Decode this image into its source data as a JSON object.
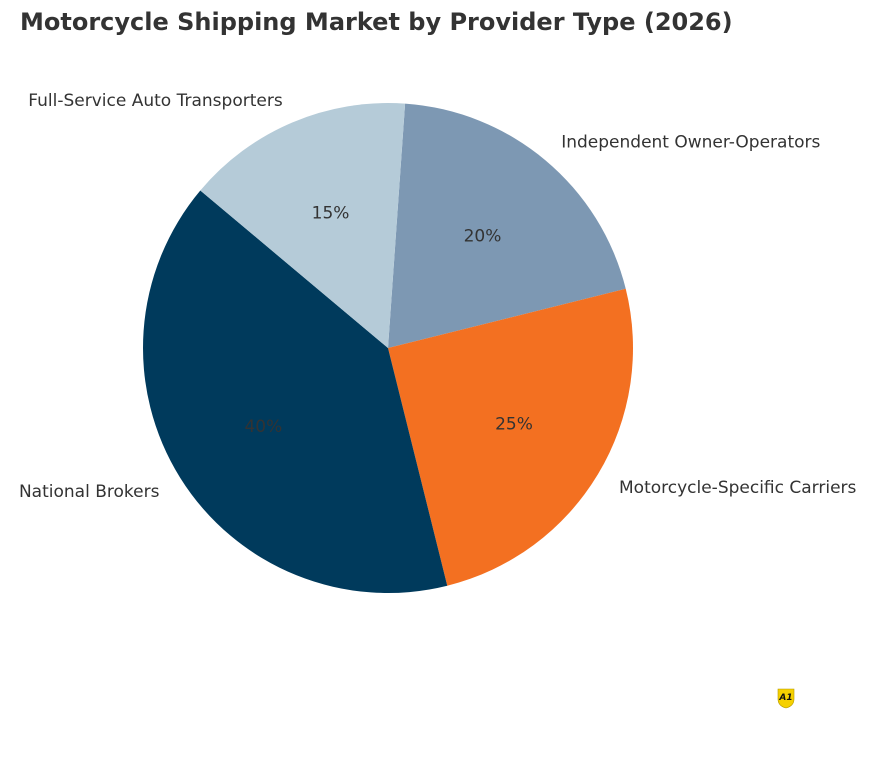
{
  "chart_data": {
    "type": "pie",
    "title": "Motorcycle Shipping Market by Provider Type (2026)",
    "categories": [
      "Independent Owner-Operators",
      "Motorcycle-Specific Carriers",
      "National Brokers",
      "Full-Service Auto Transporters"
    ],
    "values": [
      20,
      25,
      40,
      15
    ],
    "labels_pct": [
      "20%",
      "25%",
      "40%",
      "15%"
    ],
    "colors": [
      "#7d98b3",
      "#f37021",
      "#003a5c",
      "#b5cbd8"
    ],
    "start_angle_deg": 86,
    "direction": "clockwise",
    "legend": "none (direct labels)"
  },
  "watermark": {
    "text": "A1",
    "color": "#f5d000"
  }
}
